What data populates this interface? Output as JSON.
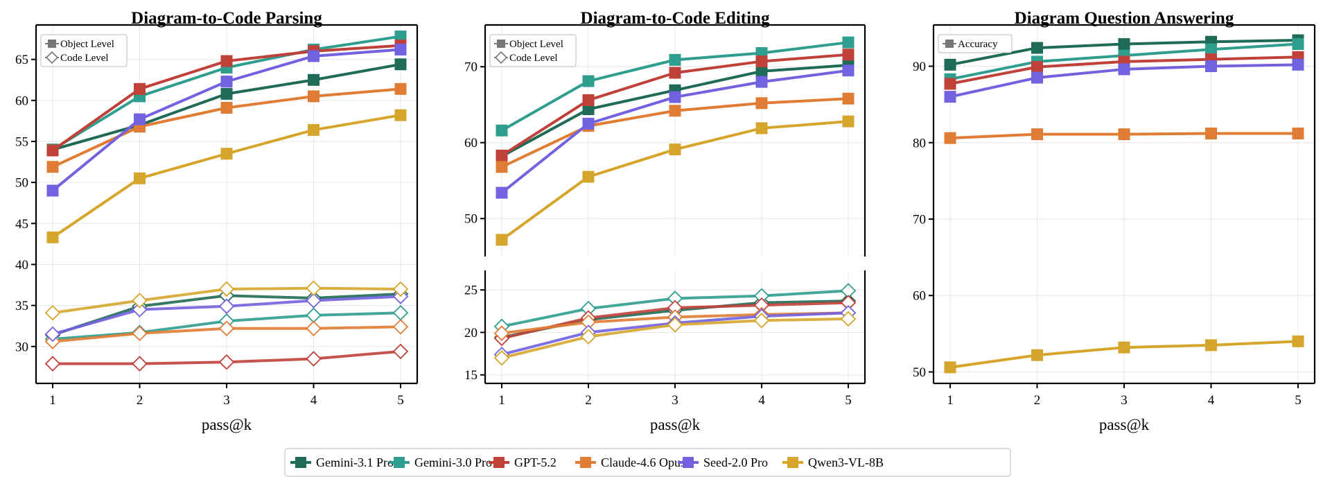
{
  "chart_data": [
    {
      "type": "line",
      "title": "Diagram-to-Code Parsing",
      "xlabel": "pass@k",
      "x": [
        1,
        2,
        3,
        4,
        5
      ],
      "axis_break": true,
      "top_ylim": [
        25.5,
        69.2
      ],
      "top_yticks": [
        30,
        35,
        40,
        45,
        50,
        55,
        60,
        65
      ],
      "grid": true,
      "legend": {
        "placement": "top-left",
        "entries": [
          "Object Level",
          "Code Level"
        ]
      },
      "series": [
        {
          "name": "Gemini-3.1 Pro",
          "level": "Object Level",
          "values": [
            54.0,
            57.0,
            60.8,
            62.5,
            64.4
          ]
        },
        {
          "name": "Gemini-3.0 Pro",
          "level": "Object Level",
          "values": [
            54.0,
            60.5,
            64.0,
            66.2,
            67.8
          ]
        },
        {
          "name": "GPT-5.2",
          "level": "Object Level",
          "values": [
            53.9,
            61.4,
            64.8,
            66.0,
            66.7
          ]
        },
        {
          "name": "Claude-4.6 Opus",
          "level": "Object Level",
          "values": [
            51.9,
            56.8,
            59.1,
            60.5,
            61.4
          ]
        },
        {
          "name": "Seed-2.0 Pro",
          "level": "Object Level",
          "values": [
            49.0,
            57.7,
            62.3,
            65.4,
            66.2
          ]
        },
        {
          "name": "Qwen3-VL-8B",
          "level": "Object Level",
          "values": [
            43.3,
            50.5,
            53.5,
            56.4,
            58.2
          ]
        },
        {
          "name": "Gemini-3.1 Pro",
          "level": "Code Level",
          "values": [
            31.4,
            34.9,
            36.2,
            35.9,
            36.4
          ]
        },
        {
          "name": "Gemini-3.0 Pro",
          "level": "Code Level",
          "values": [
            30.9,
            31.7,
            33.1,
            33.8,
            34.1
          ]
        },
        {
          "name": "GPT-5.2",
          "level": "Code Level",
          "values": [
            27.9,
            27.9,
            28.1,
            28.5,
            29.4
          ]
        },
        {
          "name": "Claude-4.6 Opus",
          "level": "Code Level",
          "values": [
            30.6,
            31.6,
            32.2,
            32.2,
            32.4
          ]
        },
        {
          "name": "Seed-2.0 Pro",
          "level": "Code Level",
          "values": [
            31.5,
            34.5,
            34.9,
            35.6,
            36.1
          ]
        },
        {
          "name": "Qwen3-VL-8B",
          "level": "Code Level",
          "values": [
            34.1,
            35.6,
            37.0,
            37.1,
            37.0
          ]
        }
      ]
    },
    {
      "type": "line",
      "title": "Diagram-to-Code Editing",
      "xlabel": "pass@k",
      "x": [
        1,
        2,
        3,
        4,
        5
      ],
      "axis_break": true,
      "top_ylim": [
        45,
        75.5
      ],
      "top_yticks": [
        50,
        60,
        70
      ],
      "bottom_ylim": [
        14,
        27.3
      ],
      "bottom_yticks": [
        15,
        20,
        25
      ],
      "grid": true,
      "legend": {
        "placement": "top-left",
        "entries": [
          "Object Level",
          "Code Level"
        ]
      },
      "series": [
        {
          "name": "Gemini-3.1 Pro",
          "level": "Object Level",
          "values": [
            58.2,
            64.4,
            66.9,
            69.4,
            70.2
          ]
        },
        {
          "name": "Gemini-3.0 Pro",
          "level": "Object Level",
          "values": [
            61.6,
            68.1,
            70.9,
            71.8,
            73.2
          ]
        },
        {
          "name": "GPT-5.2",
          "level": "Object Level",
          "values": [
            58.3,
            65.6,
            69.2,
            70.7,
            71.6
          ]
        },
        {
          "name": "Claude-4.6 Opus",
          "level": "Object Level",
          "values": [
            56.8,
            62.2,
            64.2,
            65.2,
            65.8
          ]
        },
        {
          "name": "Seed-2.0 Pro",
          "level": "Object Level",
          "values": [
            53.4,
            62.5,
            66.0,
            68.0,
            69.5
          ]
        },
        {
          "name": "Qwen3-VL-8B",
          "level": "Object Level",
          "values": [
            47.2,
            55.5,
            59.1,
            61.9,
            62.8
          ]
        },
        {
          "name": "Gemini-3.1 Pro",
          "level": "Code Level",
          "values": [
            19.4,
            21.5,
            22.6,
            23.5,
            23.7
          ]
        },
        {
          "name": "Gemini-3.0 Pro",
          "level": "Code Level",
          "values": [
            20.7,
            22.8,
            24.0,
            24.3,
            24.9
          ]
        },
        {
          "name": "GPT-5.2",
          "level": "Code Level",
          "values": [
            19.3,
            21.7,
            22.9,
            23.2,
            23.5
          ]
        },
        {
          "name": "Claude-4.6 Opus",
          "level": "Code Level",
          "values": [
            19.9,
            21.2,
            21.8,
            22.1,
            22.3
          ]
        },
        {
          "name": "Seed-2.0 Pro",
          "level": "Code Level",
          "values": [
            17.4,
            20.0,
            21.1,
            21.9,
            22.3
          ]
        },
        {
          "name": "Qwen3-VL-8B",
          "level": "Code Level",
          "values": [
            17.0,
            19.5,
            20.9,
            21.4,
            21.6
          ]
        }
      ]
    },
    {
      "type": "line",
      "title": "Diagram Question Answering",
      "xlabel": "pass@k",
      "x": [
        1,
        2,
        3,
        4,
        5
      ],
      "ylim": [
        48.5,
        95.4
      ],
      "yticks": [
        50,
        60,
        70,
        80,
        90
      ],
      "grid": true,
      "legend": {
        "placement": "top-left",
        "entries": [
          "Accuracy"
        ]
      },
      "series": [
        {
          "name": "Gemini-3.1 Pro",
          "values": [
            90.2,
            92.4,
            92.9,
            93.2,
            93.4
          ]
        },
        {
          "name": "Gemini-3.0 Pro",
          "values": [
            88.3,
            90.6,
            91.4,
            92.2,
            92.9
          ]
        },
        {
          "name": "GPT-5.2",
          "values": [
            87.7,
            89.9,
            90.6,
            90.9,
            91.2
          ]
        },
        {
          "name": "Claude-4.6 Opus",
          "values": [
            80.6,
            81.1,
            81.1,
            81.2,
            81.2
          ]
        },
        {
          "name": "Seed-2.0 Pro",
          "values": [
            86.0,
            88.5,
            89.6,
            90.0,
            90.2
          ]
        },
        {
          "name": "Qwen3-VL-8B",
          "values": [
            50.6,
            52.2,
            53.2,
            53.5,
            54.0
          ]
        }
      ]
    }
  ],
  "legend": [
    {
      "name": "Gemini-3.1 Pro",
      "color": "#1f6b57"
    },
    {
      "name": "Gemini-3.0 Pro",
      "color": "#2f9e8f"
    },
    {
      "name": "GPT-5.2",
      "color": "#c0413a"
    },
    {
      "name": "Claude-4.6 Opus",
      "color": "#e07c33"
    },
    {
      "name": "Seed-2.0 Pro",
      "color": "#7262e0"
    },
    {
      "name": "Qwen3-VL-8B",
      "color": "#d6a62c"
    }
  ]
}
